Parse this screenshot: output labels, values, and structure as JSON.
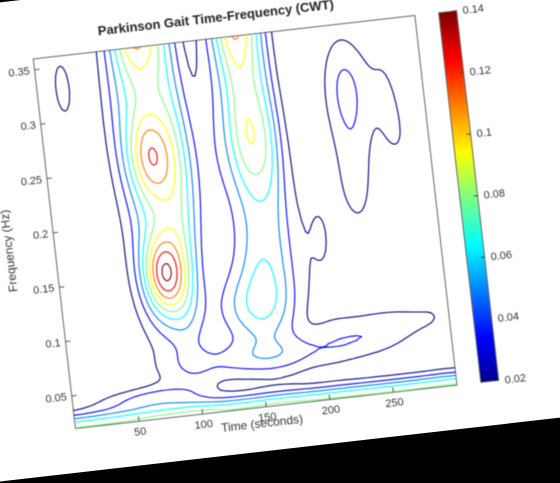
{
  "chart_data": {
    "type": "heatmap",
    "subtype": "contour",
    "title": "Parkinson Gait Time-Frequency (CWT)",
    "xlabel": "Time (seconds)",
    "ylabel": "Frequency (Hz)",
    "xlim": [
      0,
      300
    ],
    "ylim": [
      0.02,
      0.36
    ],
    "xticks": [
      50,
      100,
      150,
      200,
      250
    ],
    "yticks": [
      0.05,
      0.1,
      0.15,
      0.2,
      0.25,
      0.3,
      0.35
    ],
    "ytick_labels": [
      "0.05",
      "0.1",
      "0.15",
      "0.2",
      "0.25",
      "0.3",
      "0.35"
    ],
    "colorbar": {
      "range": [
        0.02,
        0.14
      ],
      "ticks": [
        0.02,
        0.04,
        0.06,
        0.08,
        0.1,
        0.12,
        0.14
      ],
      "tick_labels": [
        "0.02",
        "0.04",
        "0.06",
        "0.08",
        "0.1",
        "0.12",
        "0.14"
      ],
      "colormap": "jet"
    },
    "contour_levels": [
      0.02,
      0.035,
      0.05,
      0.065,
      0.08,
      0.095,
      0.11,
      0.125,
      0.14
    ],
    "grid": false,
    "hotspots": [
      {
        "t": 80,
        "f": 0.36,
        "value": 0.14
      },
      {
        "t": 82,
        "f": 0.15,
        "value": 0.12
      },
      {
        "t": 82,
        "f": 0.26,
        "value": 0.11
      },
      {
        "t": 158,
        "f": 0.36,
        "value": 0.14
      },
      {
        "t": 160,
        "f": 0.26,
        "value": 0.1
      },
      {
        "t": 145,
        "f": 0.1,
        "value": 0.06
      },
      {
        "t": 50,
        "f": 0.03,
        "value": 0.06
      },
      {
        "t": 240,
        "f": 0.3,
        "value": 0.05
      }
    ]
  }
}
